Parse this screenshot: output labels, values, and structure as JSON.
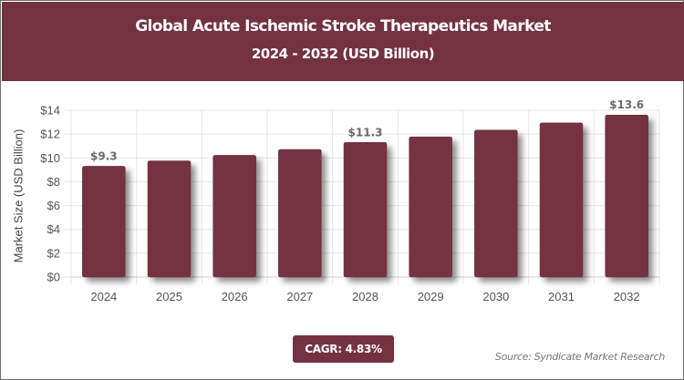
{
  "header": {
    "title": "Global Acute Ischemic Stroke Therapeutics Market",
    "subtitle": "2024 - 2032 (USD Billion)"
  },
  "colors": {
    "brand": "#743241",
    "grid": "#e6e6e6",
    "axis_text": "#555555"
  },
  "chart_data": {
    "type": "bar",
    "title": "Global Acute Ischemic Stroke Therapeutics Market 2024 - 2032 (USD Billion)",
    "categories": [
      "2024",
      "2025",
      "2026",
      "2027",
      "2028",
      "2029",
      "2030",
      "2031",
      "2032"
    ],
    "values": [
      9.3,
      9.75,
      10.22,
      10.71,
      11.3,
      11.77,
      12.34,
      12.94,
      13.6
    ],
    "data_labels": [
      {
        "index": 0,
        "text": "$9.3"
      },
      {
        "index": 4,
        "text": "$11.3"
      },
      {
        "index": 8,
        "text": "$13.6"
      }
    ],
    "xlabel": "",
    "ylabel": "Market Size (USD Billion)",
    "ylim": [
      0,
      14
    ],
    "yticks": [
      "$0",
      "$2",
      "$4",
      "$6",
      "$8",
      "$10",
      "$12",
      "$14"
    ],
    "grid": true,
    "legend": null
  },
  "footer": {
    "cagr": "CAGR: 4.83%",
    "source": "Source: Syndicate Market Research"
  }
}
